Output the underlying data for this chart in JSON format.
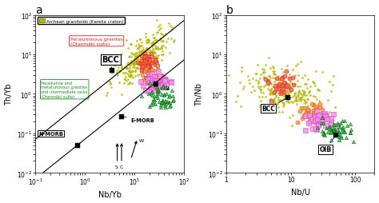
{
  "panel_a": {
    "title": "a",
    "xlabel": "Nb/Yb",
    "ylabel": "Th/Yb",
    "xlim": [
      0.1,
      100
    ],
    "ylim": [
      0.01,
      100
    ],
    "ref_points": {
      "N-MORB": [
        0.7,
        0.05
      ],
      "E-MORB": [
        5.5,
        0.27
      ],
      "OIB": [
        27,
        1.8
      ],
      "BCC": [
        3.5,
        4.0
      ]
    },
    "line1_x": [
      0.1,
      100
    ],
    "line1_y": [
      0.008,
      8.0
    ],
    "line2_x": [
      0.1,
      100
    ],
    "line2_y": [
      0.05,
      50.0
    ],
    "legend_label": "Archean granitoids (Karelia craton)",
    "peraluminous_label": "Peraluminous granites\n(Otanmäki suite)",
    "peraluminous_color": "#dd2222",
    "peralkaline_label": "Peralkaline and\nmetaluminous granites\nand intermediate rocks\n(Otanmäki suite)",
    "peralkaline_color": "#228822"
  },
  "panel_b": {
    "title": "b",
    "xlabel": "Nb/U",
    "ylabel": "Th/Nb",
    "xlim": [
      1,
      200
    ],
    "ylim": [
      0.01,
      100
    ],
    "ref_points": {
      "BCC": [
        9,
        0.8
      ],
      "OIB": [
        50,
        0.09
      ]
    }
  },
  "colors": {
    "archean": "#b8b800",
    "peraluminous_fill": "#ff6655",
    "peraluminous_edge": "#cc2200",
    "peralkaline_green_fill": "#22cc44",
    "peralkaline_green_edge": "#005500",
    "peralkaline_pink_fill": "#ff88ee",
    "peralkaline_pink_edge": "#bb44aa",
    "peralkaline_orange_fill": "#ff9944",
    "peralkaline_orange_edge": "#cc5500",
    "ref_color": "#000000"
  }
}
